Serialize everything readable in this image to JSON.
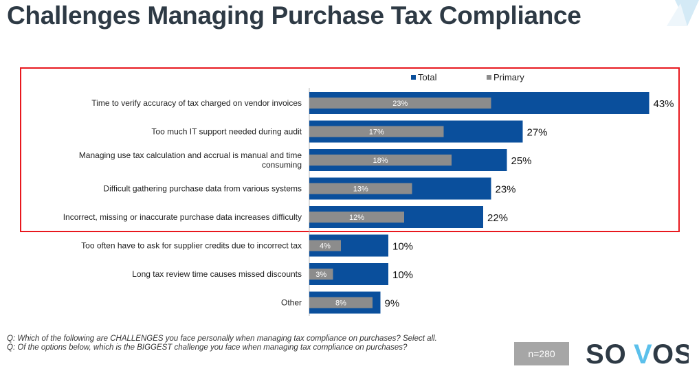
{
  "title": "Challenges Managing Purchase Tax Compliance",
  "chart_data": {
    "type": "bar",
    "orientation": "horizontal",
    "categories": [
      [
        "Time to verify accuracy of tax charged on vendor invoices"
      ],
      [
        "Too much IT support needed during audit"
      ],
      [
        "Managing use tax calculation and accrual is manual and time",
        "consuming"
      ],
      [
        "Difficult gathering purchase data from various systems"
      ],
      [
        "Incorrect, missing or inaccurate purchase data increases difficulty"
      ],
      [
        "Too often have to ask for supplier credits due to incorrect tax"
      ],
      [
        "Long tax review time causes missed discounts"
      ],
      [
        "Other"
      ]
    ],
    "series": [
      {
        "name": "Total",
        "color": "#0a4f9c",
        "values": [
          43,
          27,
          25,
          23,
          22,
          10,
          10,
          9
        ]
      },
      {
        "name": "Primary",
        "color": "#8c8c8c",
        "values": [
          23,
          17,
          18,
          13,
          12,
          4,
          3,
          8
        ]
      }
    ],
    "unit": "%",
    "legend_position": "top",
    "grid": false,
    "highlighted_categories": 5,
    "highlight_color": "#e8181e"
  },
  "notes": [
    "Q: Which of the following are CHALLENGES you face personally when managing tax compliance on purchases? Select all.",
    "Q: Of the options below, which is the BIGGEST challenge you face when managing tax compliance on purchases?"
  ],
  "sample": "n=280",
  "logo": "SOVOS"
}
